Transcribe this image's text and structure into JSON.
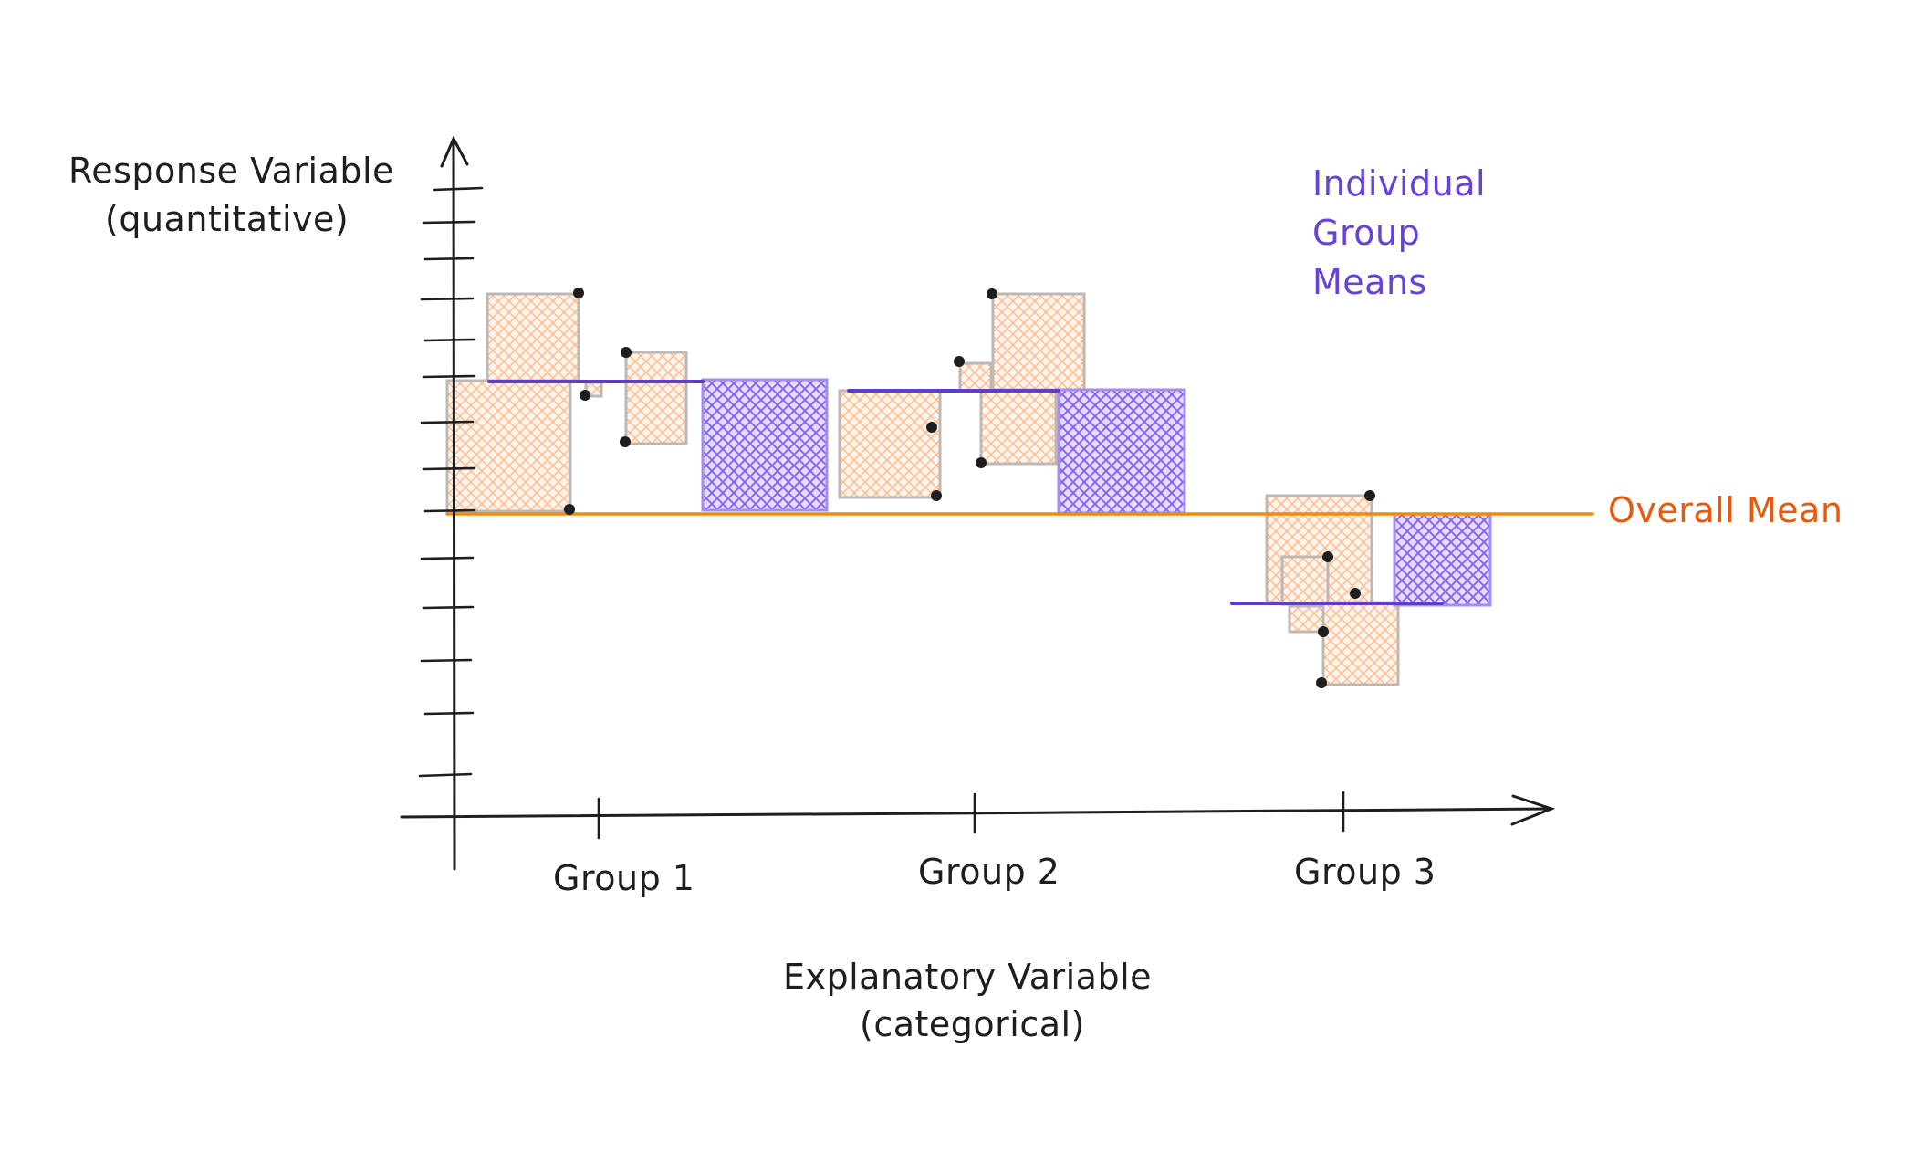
{
  "diagram": {
    "y_axis_label_line1": "Response Variable",
    "y_axis_label_line2": "(quantitative)",
    "x_axis_label_line1": "Explanatory Variable",
    "x_axis_label_line2": "(categorical)",
    "groups": [
      "Group 1",
      "Group 2",
      "Group 3"
    ],
    "group_means_label_line1": "Individual",
    "group_means_label_line2": "Group",
    "group_means_label_line3": "Means",
    "overall_mean_label": "Overall Mean",
    "colors": {
      "axis": "#1e1e1e",
      "deviation_fill": "#ffc9a8",
      "deviation_stroke": "#bdb8b4",
      "group_mean": "#5f3dc4",
      "group_mean_fill": "#9775fa",
      "overall_mean": "#f08c00",
      "points": "#1e1e1e"
    }
  }
}
